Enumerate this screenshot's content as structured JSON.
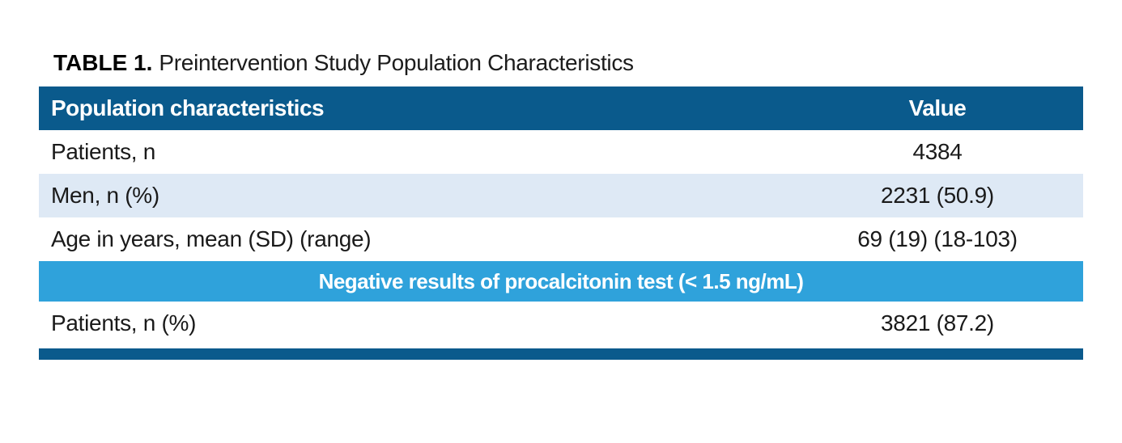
{
  "title": {
    "label": "TABLE 1.",
    "caption": "Preintervention Study Population Characteristics"
  },
  "table": {
    "columns": [
      "Population characteristics",
      "Value"
    ],
    "rows": [
      {
        "label": "Patients, n",
        "value": "4384"
      },
      {
        "label": "Men, n (%)",
        "value": "2231 (50.9)"
      },
      {
        "label": "Age in years, mean (SD) (range)",
        "value": "69 (19) (18-103)"
      }
    ],
    "section_header": "Negative results of procalcitonin test (< 1.5 ng/mL)",
    "section_rows": [
      {
        "label": "Patients, n (%)",
        "value": "3821 (87.2)"
      }
    ]
  },
  "colors": {
    "header_bg": "#0a5a8c",
    "section_bg": "#2fa2db",
    "row_alt_bg": "#dee9f5",
    "rule": "#0a5a8c",
    "text": "#1a1a1a"
  }
}
